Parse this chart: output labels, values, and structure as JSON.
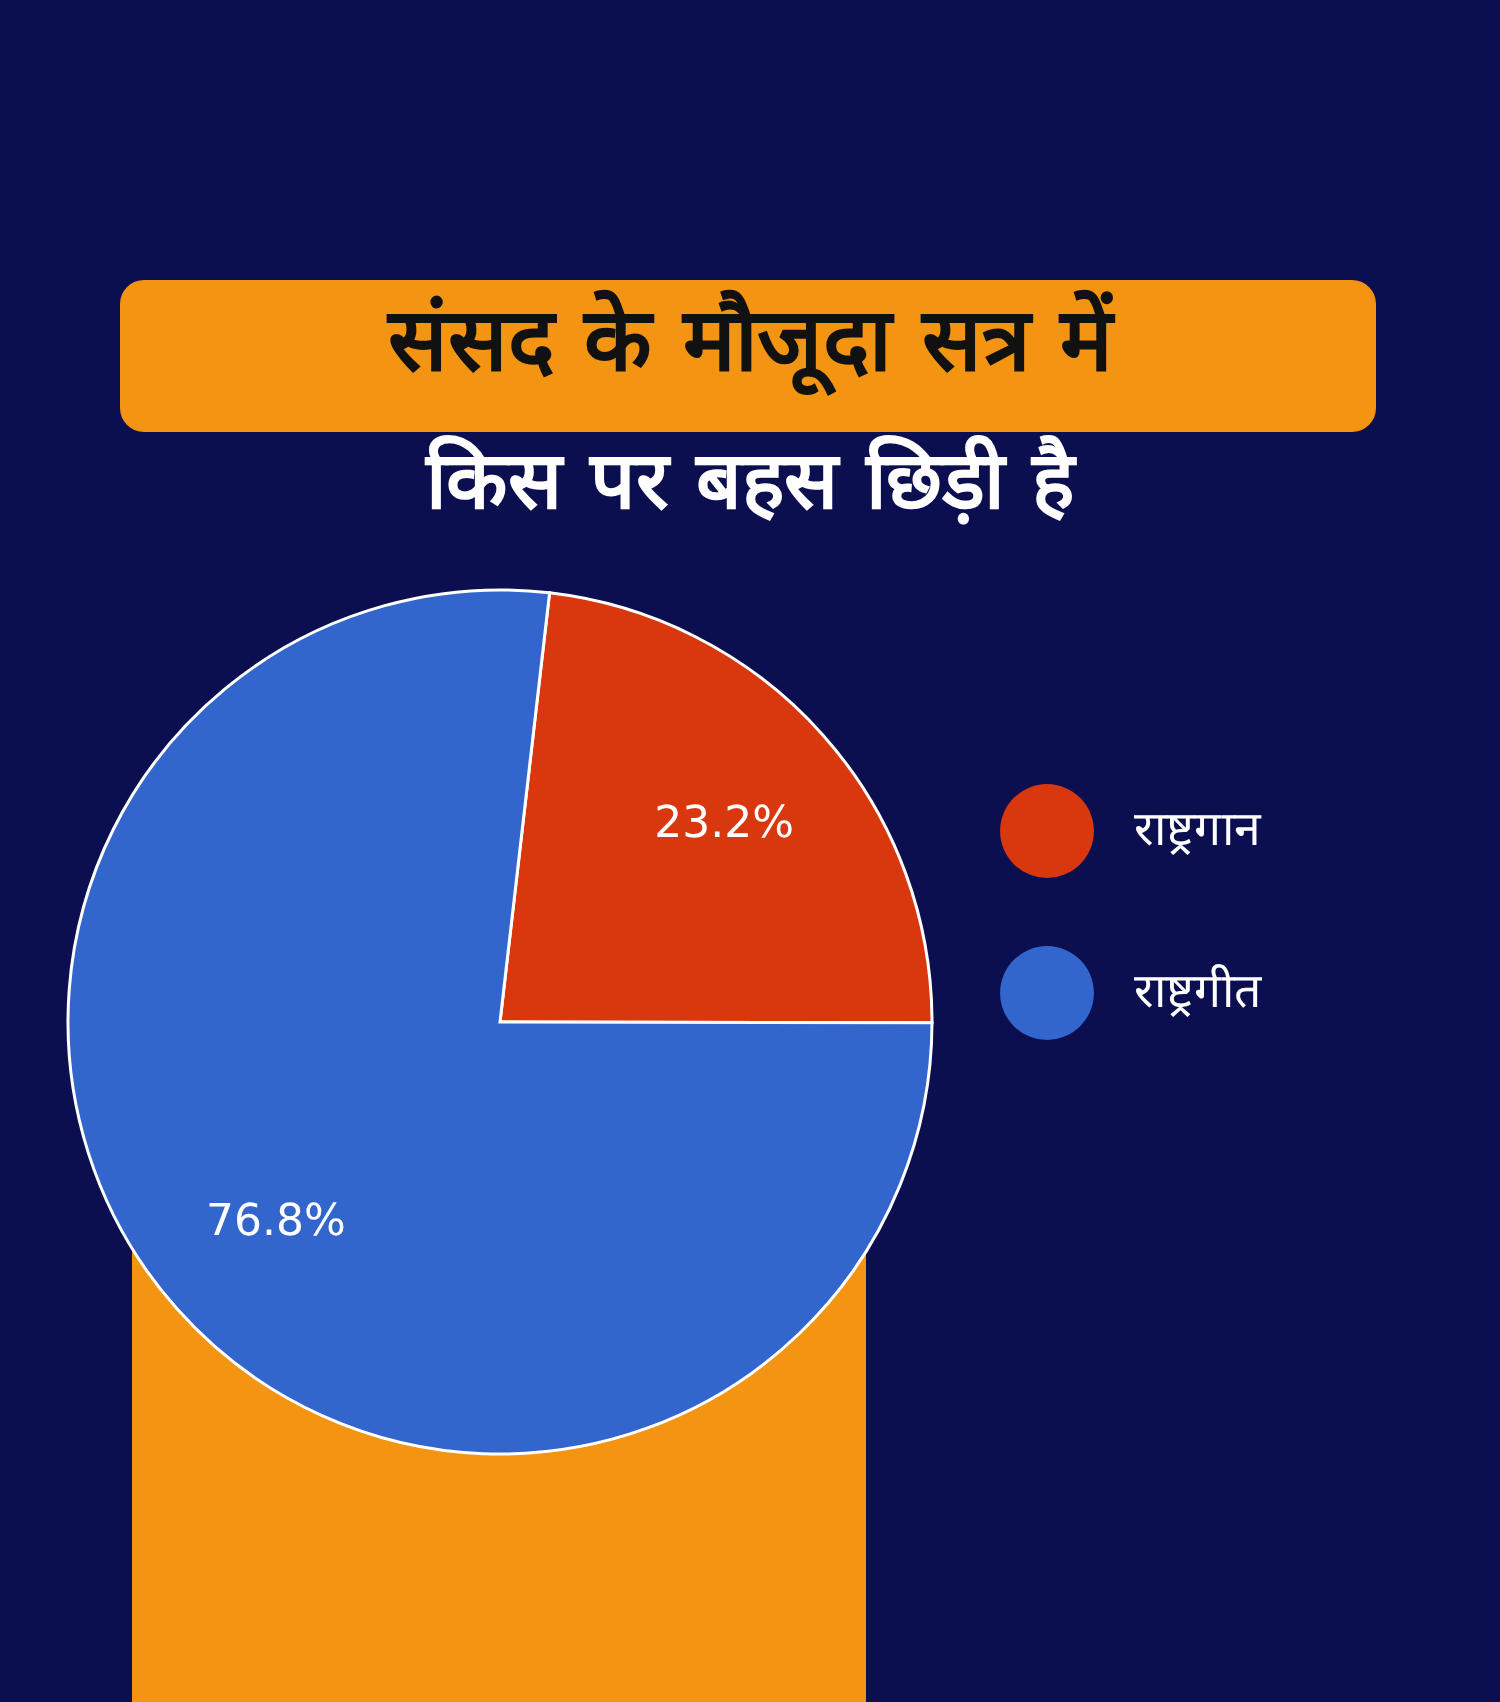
{
  "chart_data": {
    "type": "pie",
    "title": "संसद के मौजूदा सत्र में",
    "subtitle": "किस पर बहस छिड़ी है",
    "categories": [
      "राष्ट्रगान",
      "राष्ट्रगीत"
    ],
    "values": [
      23.2,
      76.8
    ],
    "colors": [
      "#d9380f",
      "#3366cc"
    ],
    "value_labels": [
      "23.2%",
      "76.8%"
    ],
    "legend": "right"
  }
}
